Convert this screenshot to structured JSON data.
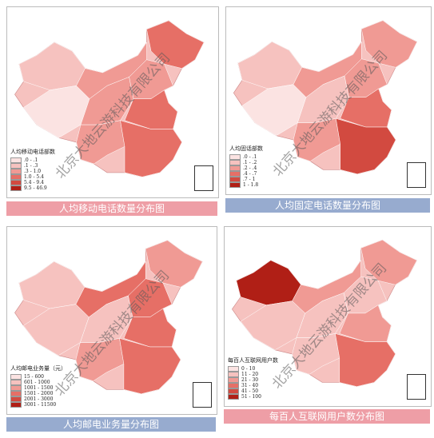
{
  "panels": [
    {
      "caption": "人均移动电话数量分布图",
      "legend_title": "人均移动电话部数",
      "legend_items": [
        ".0 - .1",
        ".1 - .3",
        ".3 - 1.0",
        "1.0 - 5.4",
        "5.4 - 9.4",
        "9.5 - 46.9"
      ],
      "watermark": "北京大地云游科技有限公司"
    },
    {
      "caption": "人均固定电话数量分布图",
      "legend_title": "人均固话部数",
      "legend_items": [
        ".0 - .1",
        ".1 - .2",
        ".2 - .4",
        ".4 - .7",
        ".7 - 1",
        "1 - 1.8"
      ],
      "watermark": "北京大地云游科技有限公司"
    },
    {
      "caption": "人均邮电业务量分布图",
      "legend_title": "人均邮电业务量（元）",
      "legend_items": [
        "15 - 600",
        "601 - 1000",
        "1001 - 1500",
        "1501 - 2000",
        "2001 - 3000",
        "3001 - 11500"
      ],
      "watermark": "北京大地云游科技有限公司"
    },
    {
      "caption": "每百人互联网用户数分布图",
      "legend_title": "每百人互联网用户数",
      "legend_items": [
        "0 - 10",
        "11 - 20",
        "21 - 30",
        "31 - 40",
        "41 - 50",
        "51 - 100"
      ],
      "watermark": "北京大地云游科技有限公司"
    }
  ]
}
